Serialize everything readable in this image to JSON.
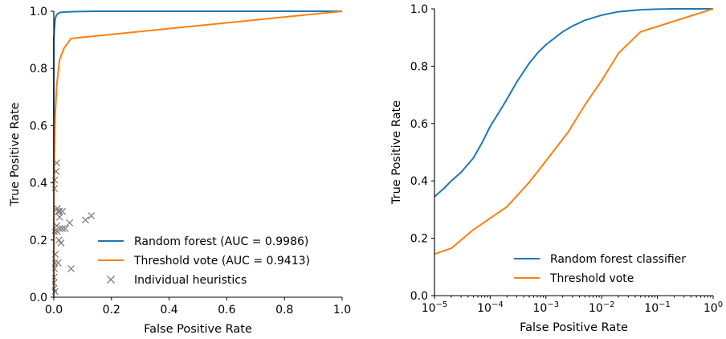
{
  "chart_data": [
    {
      "type": "line",
      "xlabel": "False Positive Rate",
      "ylabel": "True Positive Rate",
      "xlim": [
        0,
        1
      ],
      "ylim": [
        0,
        1
      ],
      "x_ticks": [
        "0.0",
        "0.2",
        "0.4",
        "0.6",
        "0.8",
        "1.0"
      ],
      "y_ticks": [
        "0.0",
        "0.2",
        "0.4",
        "0.6",
        "0.8",
        "1.0"
      ],
      "grid": false,
      "legend_position": "bottom-right",
      "series": [
        {
          "name": "Random forest (AUC = 0.9986)",
          "color": "#1f77b4",
          "x": [
            0.0,
            0.0,
            0.002,
            0.004,
            0.006,
            0.01,
            0.015,
            0.02,
            0.03,
            0.05,
            0.08,
            0.15,
            0.3,
            1.0
          ],
          "y": [
            0.0,
            0.9,
            0.94,
            0.965,
            0.978,
            0.988,
            0.992,
            0.995,
            0.997,
            0.998,
            0.999,
            1.0,
            1.0,
            1.0
          ]
        },
        {
          "name": "Threshold vote (AUC = 0.9413)",
          "color": "#ff7f0e",
          "x": [
            0.0,
            0.0,
            0.002,
            0.005,
            0.01,
            0.02,
            0.035,
            0.06,
            1.0
          ],
          "y": [
            0.0,
            0.35,
            0.5,
            0.64,
            0.74,
            0.83,
            0.87,
            0.905,
            1.0
          ]
        },
        {
          "name": "Individual heuristics",
          "type": "scatter",
          "marker": "x",
          "color": "#808080",
          "x": [
            0.0,
            0.0,
            0.001,
            0.002,
            0.003,
            0.002,
            0.003,
            0.002,
            0.004,
            0.01,
            0.012,
            0.015,
            0.02,
            0.01,
            0.02,
            0.018,
            0.025,
            0.03,
            0.03,
            0.04,
            0.055,
            0.06,
            0.11,
            0.13,
            0.015,
            0.02,
            0.012,
            0.005,
            0.008
          ],
          "y": [
            0.03,
            0.05,
            0.07,
            0.1,
            0.12,
            0.38,
            0.41,
            0.23,
            0.02,
            0.47,
            0.31,
            0.3,
            0.3,
            0.25,
            0.24,
            0.2,
            0.19,
            0.24,
            0.3,
            0.24,
            0.26,
            0.1,
            0.27,
            0.285,
            0.12,
            0.28,
            0.23,
            0.15,
            0.44
          ]
        }
      ]
    },
    {
      "type": "line",
      "xlabel": "False Positive Rate",
      "ylabel": "True Positive Rate",
      "x_scale": "log",
      "xlim": [
        1e-05,
        1
      ],
      "ylim": [
        0,
        1
      ],
      "x_ticks": [
        {
          "base": "10",
          "exp": "−5"
        },
        {
          "base": "10",
          "exp": "−4"
        },
        {
          "base": "10",
          "exp": "−3"
        },
        {
          "base": "10",
          "exp": "−2"
        },
        {
          "base": "10",
          "exp": "−1"
        },
        {
          "base": "10",
          "exp": "0"
        }
      ],
      "y_ticks": [
        "0.0",
        "0.2",
        "0.4",
        "0.6",
        "0.8",
        "1.0"
      ],
      "grid": false,
      "legend_position": "bottom-right",
      "series": [
        {
          "name": "Random forest classifier",
          "color": "#1f77b4",
          "x": [
            1e-05,
            1.5e-05,
            2e-05,
            3e-05,
            5e-05,
            7e-05,
            0.0001,
            0.00015,
            0.0002,
            0.0003,
            0.0005,
            0.0007,
            0.001,
            0.002,
            0.003,
            0.005,
            0.01,
            0.02,
            0.05,
            0.1,
            0.2,
            0.5,
            1.0
          ],
          "y": [
            0.345,
            0.375,
            0.4,
            0.43,
            0.48,
            0.53,
            0.59,
            0.645,
            0.685,
            0.745,
            0.81,
            0.845,
            0.875,
            0.92,
            0.94,
            0.96,
            0.978,
            0.99,
            0.997,
            0.999,
            1.0,
            1.0,
            1.0
          ]
        },
        {
          "name": "Threshold vote",
          "color": "#ff7f0e",
          "x": [
            1e-05,
            2e-05,
            5e-05,
            0.0002,
            0.0005,
            0.001,
            0.0025,
            0.005,
            0.01,
            0.02,
            0.05,
            1.0
          ],
          "y": [
            0.145,
            0.165,
            0.23,
            0.31,
            0.395,
            0.47,
            0.57,
            0.665,
            0.75,
            0.845,
            0.92,
            1.0
          ]
        }
      ]
    }
  ]
}
